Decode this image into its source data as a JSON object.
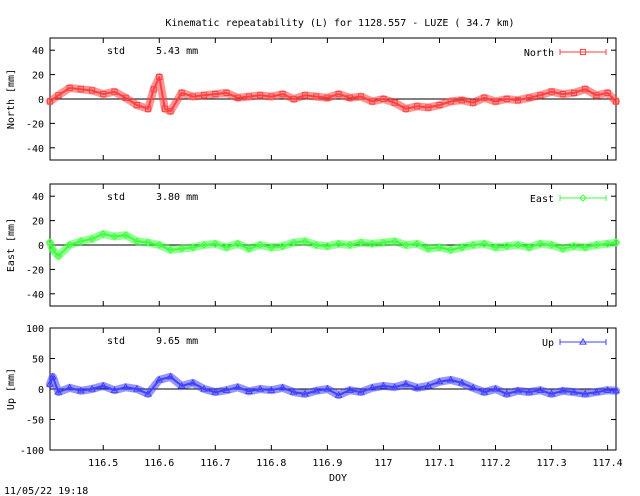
{
  "figure": {
    "title": "Kinematic repeatability (L) for 1128.557 - LUZE  ( 34.7 km)",
    "footer_timestamp": "11/05/22 19:18",
    "xlabel": "DOY",
    "std_label": "std"
  },
  "chart_data": [
    {
      "type": "line",
      "name": "north",
      "ylabel": "North [mm]",
      "series_label": "North",
      "color": "#ff4040",
      "marker": "square",
      "std_value": "5.43 mm",
      "xlim": [
        116.405,
        117.415
      ],
      "ylim": [
        -50,
        50
      ],
      "yticks": [
        -40,
        -20,
        0,
        20,
        40
      ],
      "xticks": [],
      "grid": false,
      "legend_position": "top-right",
      "x": [
        116.405,
        116.42,
        116.44,
        116.46,
        116.48,
        116.5,
        116.52,
        116.54,
        116.56,
        116.58,
        116.59,
        116.6,
        116.61,
        116.62,
        116.64,
        116.66,
        116.68,
        116.7,
        116.72,
        116.74,
        116.76,
        116.78,
        116.8,
        116.82,
        116.84,
        116.86,
        116.88,
        116.9,
        116.92,
        116.94,
        116.96,
        116.98,
        117.0,
        117.02,
        117.04,
        117.06,
        117.08,
        117.1,
        117.12,
        117.14,
        117.16,
        117.18,
        117.2,
        117.22,
        117.24,
        117.26,
        117.28,
        117.3,
        117.32,
        117.34,
        117.36,
        117.38,
        117.4,
        117.415
      ],
      "y": [
        -2,
        3,
        9,
        8,
        7,
        4,
        6,
        1,
        -5,
        -8,
        8,
        18,
        -8,
        -10,
        5,
        2,
        3,
        4,
        5,
        1,
        2,
        3,
        2,
        4,
        0,
        3,
        2,
        1,
        4,
        1,
        2,
        -2,
        0,
        -3,
        -8,
        -6,
        -7,
        -5,
        -2,
        -1,
        -3,
        1,
        -2,
        0,
        -1,
        1,
        3,
        6,
        4,
        5,
        8,
        3,
        5,
        -2
      ]
    },
    {
      "type": "line",
      "name": "east",
      "ylabel": "East [mm]",
      "series_label": "East",
      "color": "#40ff40",
      "marker": "diamond",
      "std_value": "3.80 mm",
      "xlim": [
        116.405,
        117.415
      ],
      "ylim": [
        -50,
        50
      ],
      "yticks": [
        -40,
        -20,
        0,
        20,
        40
      ],
      "xticks": [],
      "grid": false,
      "legend_position": "top-right",
      "x": [
        116.405,
        116.41,
        116.42,
        116.44,
        116.46,
        116.48,
        116.5,
        116.52,
        116.54,
        116.56,
        116.58,
        116.6,
        116.62,
        116.64,
        116.66,
        116.68,
        116.7,
        116.72,
        116.74,
        116.76,
        116.78,
        116.8,
        116.82,
        116.84,
        116.86,
        116.88,
        116.9,
        116.92,
        116.94,
        116.96,
        116.98,
        117.0,
        117.02,
        117.04,
        117.06,
        117.08,
        117.1,
        117.12,
        117.14,
        117.16,
        117.18,
        117.2,
        117.22,
        117.24,
        117.26,
        117.28,
        117.3,
        117.32,
        117.34,
        117.36,
        117.38,
        117.4,
        117.415
      ],
      "y": [
        2,
        -4,
        -9,
        0,
        3,
        5,
        9,
        7,
        8,
        3,
        2,
        0,
        -4,
        -3,
        -2,
        0,
        1,
        -2,
        1,
        -3,
        0,
        -2,
        -1,
        2,
        3,
        0,
        -1,
        1,
        0,
        2,
        1,
        2,
        3,
        0,
        1,
        -3,
        -2,
        -4,
        -2,
        0,
        1,
        -2,
        -1,
        0,
        -2,
        1,
        0,
        -3,
        -1,
        -2,
        0,
        1,
        2
      ]
    },
    {
      "type": "line",
      "name": "up",
      "ylabel": "Up [mm]",
      "series_label": "Up",
      "color": "#4040ff",
      "marker": "triangle",
      "std_value": "9.65 mm",
      "xlim": [
        116.405,
        117.415
      ],
      "ylim": [
        -100,
        100
      ],
      "yticks": [
        -100,
        -50,
        0,
        50,
        100
      ],
      "xticks": [
        116.5,
        116.6,
        116.7,
        116.8,
        116.9,
        117.0,
        117.1,
        117.2,
        117.3,
        117.4
      ],
      "xticklabels": [
        "116.5",
        "116.6",
        "116.7",
        "116.8",
        "116.9",
        "117",
        "117.1",
        "117.2",
        "117.3",
        "117.4"
      ],
      "grid": false,
      "legend_position": "top-right",
      "x": [
        116.405,
        116.41,
        116.42,
        116.44,
        116.46,
        116.48,
        116.5,
        116.52,
        116.54,
        116.56,
        116.58,
        116.6,
        116.62,
        116.64,
        116.66,
        116.68,
        116.7,
        116.72,
        116.74,
        116.76,
        116.78,
        116.8,
        116.82,
        116.84,
        116.86,
        116.88,
        116.9,
        116.92,
        116.94,
        116.96,
        116.98,
        117.0,
        117.02,
        117.04,
        117.06,
        117.08,
        117.1,
        117.12,
        117.14,
        117.16,
        117.18,
        117.2,
        117.22,
        117.24,
        117.26,
        117.28,
        117.3,
        117.32,
        117.34,
        117.36,
        117.38,
        117.4,
        117.415
      ],
      "y": [
        8,
        20,
        -5,
        2,
        -3,
        0,
        5,
        -2,
        3,
        0,
        -8,
        15,
        20,
        5,
        10,
        0,
        -5,
        -2,
        3,
        -4,
        0,
        -2,
        2,
        -5,
        -8,
        -3,
        0,
        -10,
        -2,
        -5,
        2,
        5,
        3,
        8,
        2,
        5,
        12,
        15,
        10,
        2,
        -5,
        0,
        -8,
        -3,
        -5,
        -2,
        -8,
        -3,
        -5,
        -8,
        -5,
        -2,
        -3
      ]
    }
  ]
}
